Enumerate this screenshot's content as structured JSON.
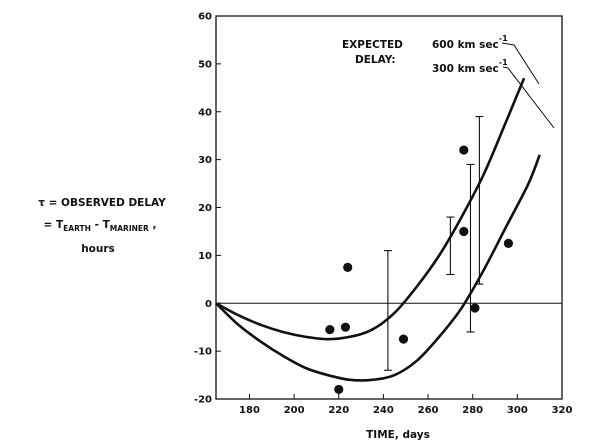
{
  "chart_data": {
    "type": "scatter",
    "xlabel": "TIME, days",
    "ylabel": {
      "line1": "τ = OBSERVED DELAY",
      "line2_prefix": "= T",
      "line2_sub1": "EARTH",
      "line2_mid": " - T",
      "line2_sub2": "MARINER",
      "line2_suffix": " ,",
      "line3": "hours"
    },
    "xlim": [
      165,
      320
    ],
    "ylim": [
      -20,
      60
    ],
    "x_ticks": [
      180,
      200,
      220,
      240,
      260,
      280,
      300,
      320
    ],
    "y_ticks": [
      -20,
      -10,
      0,
      10,
      20,
      30,
      40,
      50,
      60
    ],
    "points": [
      {
        "x": 216,
        "y": -5.5
      },
      {
        "x": 220,
        "y": -18
      },
      {
        "x": 223,
        "y": -5
      },
      {
        "x": 224,
        "y": 7.5
      },
      {
        "x": 249,
        "y": -7.5
      },
      {
        "x": 276,
        "y": 32
      },
      {
        "x": 276,
        "y": 15
      },
      {
        "x": 281,
        "y": -1
      },
      {
        "x": 296,
        "y": 12.5
      }
    ],
    "error_bars": [
      {
        "x": 242,
        "low": -14,
        "high": 11
      },
      {
        "x": 270,
        "low": 6,
        "high": 18
      },
      {
        "x": 279,
        "low": -6,
        "high": 29
      },
      {
        "x": 283,
        "low": 4,
        "high": 39
      }
    ],
    "series": [
      {
        "label_value": "600 km sec",
        "label_exp": "-1",
        "x": [
          165,
          175,
          185,
          195,
          205,
          215,
          225,
          235,
          245,
          255,
          265,
          275,
          285,
          295,
          303
        ],
        "y": [
          0,
          -2.5,
          -4.5,
          -6,
          -7,
          -7.5,
          -7,
          -5.5,
          -2,
          3.5,
          10,
          18,
          27,
          38,
          47
        ]
      },
      {
        "label_value": "300 km sec",
        "label_exp": "-1",
        "x": [
          165,
          175,
          185,
          195,
          205,
          215,
          225,
          235,
          245,
          255,
          265,
          275,
          285,
          295,
          305,
          310
        ],
        "y": [
          0,
          -4.5,
          -8,
          -11,
          -13.5,
          -15,
          -16,
          -16,
          -15,
          -12,
          -7,
          -1,
          7,
          16,
          25,
          31
        ]
      }
    ],
    "annotation": {
      "line1": "EXPECTED",
      "line2": "DELAY:"
    },
    "zero_line": true,
    "grid": false
  }
}
